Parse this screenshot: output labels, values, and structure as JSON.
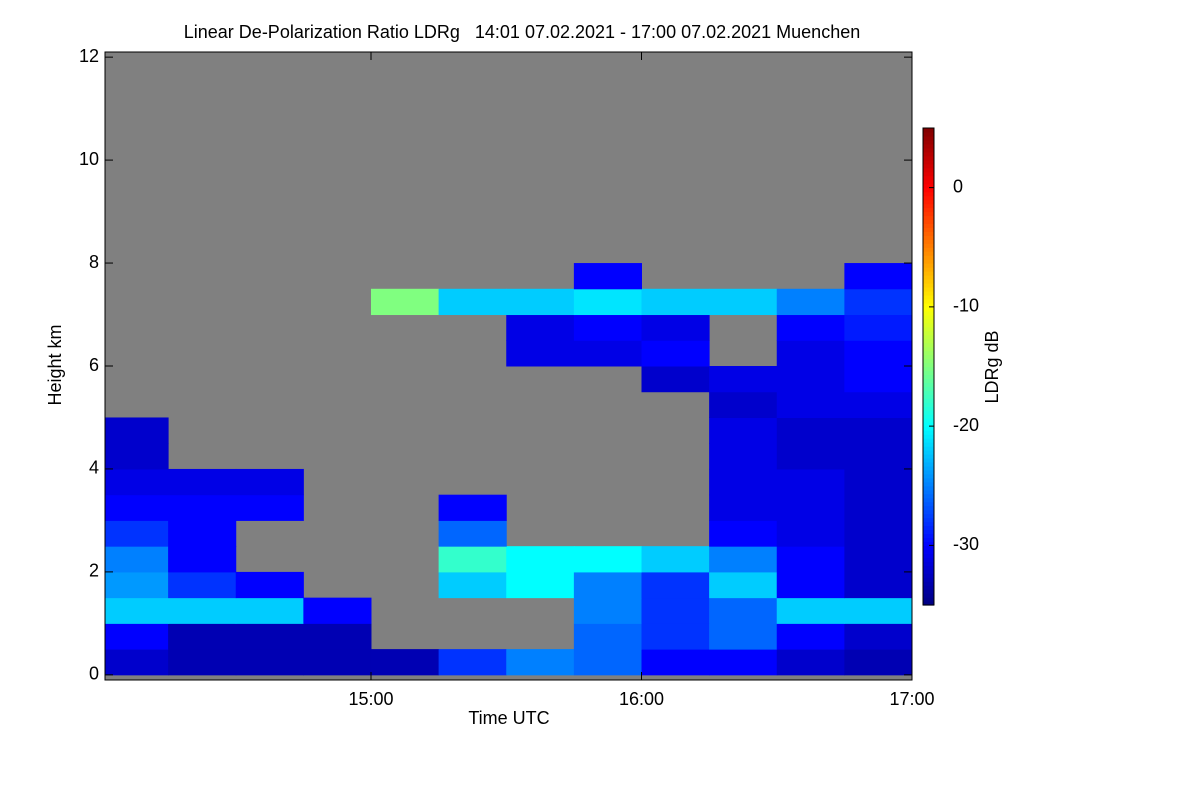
{
  "chart_data": {
    "type": "heatmap",
    "title": "Linear De-Polarization Ratio LDRg   14:01 07.02.2021 - 17:00 07.02.2021 Muenchen",
    "x_label": "Time UTC",
    "y_label": "Height km",
    "colorbar_label": "LDRg dB",
    "colormap": "jet",
    "missing_color": "#808080",
    "xlim": [
      14.0167,
      17.0
    ],
    "xticks": [
      {
        "value": 15,
        "label": "15:00"
      },
      {
        "value": 16,
        "label": "16:00"
      },
      {
        "value": 17,
        "label": "17:00"
      }
    ],
    "ylim": [
      -0.1,
      12.1
    ],
    "yticks": [
      0,
      2,
      4,
      6,
      8,
      10,
      12
    ],
    "clim": [
      -35,
      5
    ],
    "cticks": [
      0,
      -10,
      -20,
      -30
    ],
    "xbins": [
      14.0167,
      14.25,
      14.5,
      14.75,
      15.0,
      15.25,
      15.5,
      15.75,
      16.0,
      16.25,
      16.5,
      16.75,
      17.0
    ],
    "ybins": [
      0,
      0.5,
      1,
      1.5,
      2,
      2.5,
      3,
      3.5,
      4,
      4.5,
      5,
      5.5,
      6,
      6.5,
      7,
      7.5,
      8
    ],
    "z": [
      [
        -32,
        -33,
        -33,
        -33,
        -33,
        -28,
        -25,
        -26,
        -30,
        -30,
        -32,
        -33
      ],
      [
        -30,
        -33,
        -33,
        -33,
        null,
        null,
        null,
        -26,
        -28,
        -26,
        -30,
        -32
      ],
      [
        -22,
        -22,
        -22,
        -30,
        null,
        null,
        null,
        -25,
        -28,
        -26,
        -22,
        -22
      ],
      [
        -24,
        -28,
        -30,
        null,
        null,
        -22,
        -20,
        -25,
        -28,
        -22,
        -30,
        -32
      ],
      [
        -25,
        -30,
        null,
        null,
        null,
        -18,
        -20,
        -20,
        -22,
        -25,
        -30,
        -32
      ],
      [
        -28,
        -30,
        null,
        null,
        null,
        -26,
        null,
        null,
        null,
        -30,
        -31,
        -32
      ],
      [
        -30,
        -30,
        -30,
        null,
        null,
        -30,
        null,
        null,
        null,
        -31,
        -31,
        -32
      ],
      [
        -31,
        -31,
        -31,
        null,
        null,
        null,
        null,
        null,
        null,
        -31,
        -31,
        -32
      ],
      [
        -32,
        null,
        null,
        null,
        null,
        null,
        null,
        null,
        null,
        -31,
        -32,
        -32
      ],
      [
        -32,
        null,
        null,
        null,
        null,
        null,
        null,
        null,
        null,
        -31,
        -32,
        -32
      ],
      [
        null,
        null,
        null,
        null,
        null,
        null,
        null,
        null,
        null,
        -32,
        -31,
        -31
      ],
      [
        null,
        null,
        null,
        null,
        null,
        null,
        null,
        null,
        -32,
        -31,
        -31,
        -30
      ],
      [
        null,
        null,
        null,
        null,
        null,
        null,
        -31,
        -31,
        -30,
        null,
        -31,
        -30
      ],
      [
        null,
        null,
        null,
        null,
        null,
        null,
        -31,
        -30,
        -31,
        null,
        -30,
        -29
      ],
      [
        null,
        null,
        null,
        null,
        -15,
        -22,
        -22,
        -21,
        -22,
        -22,
        -25,
        -28
      ],
      [
        null,
        null,
        null,
        null,
        null,
        null,
        null,
        -30,
        null,
        null,
        null,
        -30
      ]
    ]
  }
}
